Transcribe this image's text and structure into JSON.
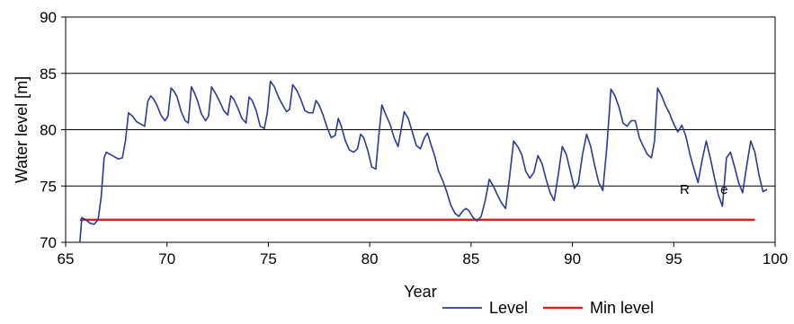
{
  "chart_data": {
    "type": "line",
    "title": "",
    "xlabel": "Year",
    "ylabel": "Water level [m]",
    "xlim": [
      65,
      100
    ],
    "ylim": [
      70,
      90
    ],
    "x_ticks": [
      "65",
      "70",
      "75",
      "80",
      "85",
      "90",
      "95",
      "100"
    ],
    "y_ticks": [
      "70",
      "75",
      "80",
      "85",
      "90"
    ],
    "grid": "horizontal",
    "legend_position": "bottom-right",
    "annotations": [
      "R",
      "e"
    ],
    "series": [
      {
        "name": "Level",
        "color": "#2b3a9a",
        "points": [
          [
            65.7,
            70.0
          ],
          [
            65.8,
            72.2
          ],
          [
            66.0,
            72.0
          ],
          [
            66.2,
            71.7
          ],
          [
            66.4,
            71.6
          ],
          [
            66.6,
            72.0
          ],
          [
            66.75,
            74.0
          ],
          [
            66.9,
            77.5
          ],
          [
            67.0,
            78.0
          ],
          [
            67.2,
            77.8
          ],
          [
            67.4,
            77.6
          ],
          [
            67.6,
            77.4
          ],
          [
            67.8,
            77.5
          ],
          [
            67.95,
            79.0
          ],
          [
            68.1,
            81.5
          ],
          [
            68.3,
            81.2
          ],
          [
            68.5,
            80.7
          ],
          [
            68.7,
            80.5
          ],
          [
            68.9,
            80.3
          ],
          [
            69.05,
            82.5
          ],
          [
            69.2,
            83.0
          ],
          [
            69.35,
            82.7
          ],
          [
            69.5,
            82.2
          ],
          [
            69.7,
            81.3
          ],
          [
            69.9,
            80.8
          ],
          [
            70.05,
            81.2
          ],
          [
            70.2,
            83.7
          ],
          [
            70.35,
            83.4
          ],
          [
            70.5,
            82.9
          ],
          [
            70.7,
            81.6
          ],
          [
            70.9,
            80.8
          ],
          [
            71.05,
            80.6
          ],
          [
            71.2,
            83.8
          ],
          [
            71.35,
            83.3
          ],
          [
            71.5,
            82.6
          ],
          [
            71.7,
            81.4
          ],
          [
            71.9,
            80.8
          ],
          [
            72.05,
            81.2
          ],
          [
            72.2,
            83.8
          ],
          [
            72.4,
            83.2
          ],
          [
            72.6,
            82.5
          ],
          [
            72.8,
            81.7
          ],
          [
            73.0,
            81.3
          ],
          [
            73.15,
            83.0
          ],
          [
            73.3,
            82.7
          ],
          [
            73.5,
            81.9
          ],
          [
            73.7,
            81.0
          ],
          [
            73.9,
            80.6
          ],
          [
            74.05,
            82.9
          ],
          [
            74.2,
            82.6
          ],
          [
            74.4,
            81.7
          ],
          [
            74.6,
            80.3
          ],
          [
            74.8,
            80.1
          ],
          [
            74.95,
            81.5
          ],
          [
            75.1,
            84.3
          ],
          [
            75.3,
            83.8
          ],
          [
            75.5,
            82.9
          ],
          [
            75.7,
            82.2
          ],
          [
            75.9,
            81.6
          ],
          [
            76.05,
            81.8
          ],
          [
            76.2,
            84.0
          ],
          [
            76.4,
            83.5
          ],
          [
            76.6,
            82.7
          ],
          [
            76.8,
            81.7
          ],
          [
            77.0,
            81.5
          ],
          [
            77.2,
            81.5
          ],
          [
            77.35,
            82.6
          ],
          [
            77.5,
            82.2
          ],
          [
            77.7,
            81.3
          ],
          [
            77.9,
            80.2
          ],
          [
            78.1,
            79.3
          ],
          [
            78.3,
            79.5
          ],
          [
            78.45,
            81.0
          ],
          [
            78.6,
            80.3
          ],
          [
            78.8,
            79.0
          ],
          [
            79.0,
            78.2
          ],
          [
            79.2,
            78.0
          ],
          [
            79.4,
            78.3
          ],
          [
            79.55,
            79.6
          ],
          [
            79.7,
            79.3
          ],
          [
            79.9,
            78.2
          ],
          [
            80.1,
            76.7
          ],
          [
            80.3,
            76.5
          ],
          [
            80.45,
            79.5
          ],
          [
            80.6,
            82.2
          ],
          [
            80.8,
            81.3
          ],
          [
            81.0,
            80.5
          ],
          [
            81.2,
            79.3
          ],
          [
            81.4,
            78.5
          ],
          [
            81.55,
            80.0
          ],
          [
            81.7,
            81.6
          ],
          [
            81.9,
            81.0
          ],
          [
            82.1,
            79.8
          ],
          [
            82.3,
            78.6
          ],
          [
            82.5,
            78.3
          ],
          [
            82.7,
            79.3
          ],
          [
            82.85,
            79.7
          ],
          [
            83.0,
            78.8
          ],
          [
            83.2,
            77.7
          ],
          [
            83.4,
            76.3
          ],
          [
            83.6,
            75.5
          ],
          [
            83.8,
            74.5
          ],
          [
            84.0,
            73.3
          ],
          [
            84.2,
            72.6
          ],
          [
            84.4,
            72.3
          ],
          [
            84.6,
            72.8
          ],
          [
            84.75,
            73.0
          ],
          [
            84.9,
            72.8
          ],
          [
            85.1,
            72.2
          ],
          [
            85.3,
            71.9
          ],
          [
            85.5,
            72.3
          ],
          [
            85.7,
            73.7
          ],
          [
            85.9,
            75.6
          ],
          [
            86.1,
            75.0
          ],
          [
            86.3,
            74.2
          ],
          [
            86.5,
            73.5
          ],
          [
            86.7,
            73.0
          ],
          [
            86.9,
            75.8
          ],
          [
            87.1,
            79.0
          ],
          [
            87.3,
            78.5
          ],
          [
            87.5,
            77.8
          ],
          [
            87.7,
            76.3
          ],
          [
            87.9,
            75.7
          ],
          [
            88.1,
            76.2
          ],
          [
            88.3,
            77.7
          ],
          [
            88.5,
            77.0
          ],
          [
            88.7,
            75.6
          ],
          [
            88.9,
            74.4
          ],
          [
            89.1,
            73.7
          ],
          [
            89.3,
            76.0
          ],
          [
            89.5,
            78.5
          ],
          [
            89.7,
            77.8
          ],
          [
            89.9,
            76.3
          ],
          [
            90.1,
            74.8
          ],
          [
            90.3,
            75.3
          ],
          [
            90.5,
            77.8
          ],
          [
            90.7,
            79.6
          ],
          [
            90.9,
            78.5
          ],
          [
            91.1,
            76.8
          ],
          [
            91.3,
            75.3
          ],
          [
            91.5,
            74.6
          ],
          [
            91.7,
            78.5
          ],
          [
            91.9,
            83.6
          ],
          [
            92.1,
            83.0
          ],
          [
            92.3,
            82.0
          ],
          [
            92.5,
            80.6
          ],
          [
            92.7,
            80.3
          ],
          [
            92.9,
            80.8
          ],
          [
            93.1,
            80.8
          ],
          [
            93.3,
            79.3
          ],
          [
            93.5,
            78.5
          ],
          [
            93.7,
            77.8
          ],
          [
            93.9,
            77.5
          ],
          [
            94.05,
            79.0
          ],
          [
            94.2,
            83.7
          ],
          [
            94.4,
            83.0
          ],
          [
            94.6,
            82.1
          ],
          [
            94.8,
            81.4
          ],
          [
            95.0,
            80.5
          ],
          [
            95.2,
            79.8
          ],
          [
            95.4,
            80.4
          ],
          [
            95.6,
            79.4
          ],
          [
            95.8,
            77.8
          ],
          [
            96.0,
            76.5
          ],
          [
            96.2,
            75.3
          ],
          [
            96.4,
            77.3
          ],
          [
            96.6,
            79.0
          ],
          [
            96.8,
            77.5
          ],
          [
            97.0,
            75.8
          ],
          [
            97.2,
            74.2
          ],
          [
            97.4,
            73.2
          ],
          [
            97.6,
            77.5
          ],
          [
            97.8,
            78.0
          ],
          [
            98.0,
            76.7
          ],
          [
            98.2,
            75.3
          ],
          [
            98.4,
            74.4
          ],
          [
            98.6,
            76.8
          ],
          [
            98.8,
            79.0
          ],
          [
            99.0,
            78.0
          ],
          [
            99.2,
            76.0
          ],
          [
            99.4,
            74.5
          ],
          [
            99.6,
            74.7
          ]
        ]
      },
      {
        "name": "Min level",
        "color": "#e0201c",
        "points": [
          [
            65.7,
            72.0
          ],
          [
            99.0,
            72.0
          ]
        ]
      }
    ]
  }
}
